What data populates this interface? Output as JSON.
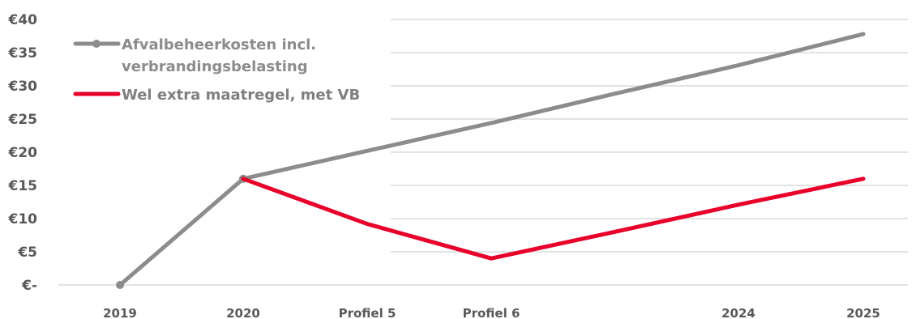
{
  "chart_data": {
    "type": "line",
    "categories": [
      "2019",
      "2020",
      "Profiel 5",
      "Profiel 6",
      "",
      "2024",
      "2025"
    ],
    "x_tick_labels": [
      "2019",
      "2020",
      "Profiel 5",
      "Profiel 6",
      "2024",
      "2025"
    ],
    "y_tick_labels": [
      "€-",
      "€5",
      "€10",
      "€15",
      "€20",
      "€25",
      "€30",
      "€35",
      "€40"
    ],
    "ylim": [
      0,
      40
    ],
    "y_step": 5,
    "grid": true,
    "legend_position": "top-left",
    "series": [
      {
        "name": "Afvalbeheerkosten incl. verbrandingsbelasting",
        "legend_lines": [
          "Afvalbeheerkosten incl.",
          "verbrandingsbelasting"
        ],
        "color": "#8c8c8c",
        "marker": "circle",
        "values": [
          0,
          16,
          20.2,
          24.4,
          28.8,
          33.1,
          37.8
        ]
      },
      {
        "name": "Wel extra maatregel, met VB",
        "legend_lines": [
          "Wel extra maatregel, met VB"
        ],
        "color": "#e8002b",
        "marker": "none",
        "values": [
          null,
          16,
          9.2,
          4,
          8,
          12.1,
          16
        ]
      }
    ]
  }
}
